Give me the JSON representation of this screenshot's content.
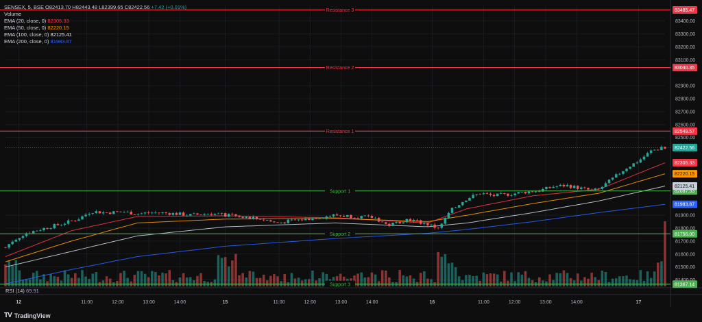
{
  "legend": {
    "symbol": "SENSEX, 5, BSE",
    "open_label": "O",
    "open": "82413.70",
    "high_label": "H",
    "high": "82443.48",
    "low_label": "L",
    "low": "82399.65",
    "close_label": "C",
    "close": "82422.56",
    "change": "+7.42 (+0.01%)",
    "volume_label": "Volume",
    "ema20_label": "EMA (20, close, 0)",
    "ema20": "82305.33",
    "ema50_label": "EMA (50, close, 0)",
    "ema50": "82220.15",
    "ema100_label": "EMA (100, close, 0)",
    "ema100": "82125.41",
    "ema200_label": "EMA (200, close, 0)",
    "ema200": "81983.87"
  },
  "rsi": {
    "label": "RSI (14)",
    "value": "69.91"
  },
  "brand": {
    "icon": "TV",
    "name": "TradingView"
  },
  "colors": {
    "up": "#26a69a",
    "down": "#ef5350",
    "resistance": "#f23645",
    "support": "#4caf50",
    "ema20": "#f23645",
    "ema50": "#ff9800",
    "ema100": "#c8d0d8",
    "ema200": "#2962ff",
    "background": "#0e0e0e"
  },
  "chart_data": {
    "type": "candlestick",
    "ylim": [
      81350,
      83520
    ],
    "y_ticks": [
      83400,
      83300,
      83200,
      83100,
      82900,
      82800,
      82700,
      82600,
      82500,
      81900,
      81800,
      81700,
      81600,
      81500,
      81400
    ],
    "x_ticks": [
      {
        "label": "12",
        "bold": true,
        "t": 0.0
      },
      {
        "label": "11:00",
        "bold": false,
        "t": 0.11
      },
      {
        "label": "12:00",
        "bold": false,
        "t": 0.16
      },
      {
        "label": "13:00",
        "bold": false,
        "t": 0.21
      },
      {
        "label": "14:00",
        "bold": false,
        "t": 0.26
      },
      {
        "label": "15",
        "bold": true,
        "t": 0.333
      },
      {
        "label": "11:00",
        "bold": false,
        "t": 0.42
      },
      {
        "label": "12:00",
        "bold": false,
        "t": 0.47
      },
      {
        "label": "13:00",
        "bold": false,
        "t": 0.52
      },
      {
        "label": "14:00",
        "bold": false,
        "t": 0.57
      },
      {
        "label": "16",
        "bold": true,
        "t": 0.667
      },
      {
        "label": "11:00",
        "bold": false,
        "t": 0.75
      },
      {
        "label": "12:00",
        "bold": false,
        "t": 0.8
      },
      {
        "label": "13:00",
        "bold": false,
        "t": 0.85
      },
      {
        "label": "14:00",
        "bold": false,
        "t": 0.9
      },
      {
        "label": "17",
        "bold": true,
        "t": 1.0
      }
    ],
    "levels": [
      {
        "name": "Resistance 3",
        "value": 83485.47,
        "kind": "resistance",
        "label": "83485.47"
      },
      {
        "name": "Resistance 2",
        "value": 83040.35,
        "kind": "resistance",
        "label": "83040.35"
      },
      {
        "name": "Resistance 1",
        "value": 82549.57,
        "kind": "resistance",
        "label": "82549.57"
      },
      {
        "name": "Support 1",
        "value": 82087.33,
        "kind": "support",
        "label": "82087.33"
      },
      {
        "name": "Support 2",
        "value": 81756.0,
        "kind": "support",
        "label": "81756.00"
      },
      {
        "name": "Support 3",
        "value": 81367.14,
        "kind": "support",
        "label": "81367.14"
      }
    ],
    "last_price": {
      "value": 82422.56,
      "label": "82422.56"
    },
    "ema_tags": [
      {
        "value": 82305.33,
        "label": "82305.33",
        "color": "#f23645"
      },
      {
        "value": 82220.15,
        "label": "82220.15",
        "color": "#ff9800"
      },
      {
        "value": 82125.41,
        "label": "82125.41",
        "color": "#c8d0d8"
      },
      {
        "value": 81983.87,
        "label": "81983.87",
        "color": "#2962ff"
      }
    ],
    "price_path": [
      [
        0.0,
        81650
      ],
      [
        0.01,
        81700
      ],
      [
        0.03,
        81760
      ],
      [
        0.06,
        81800
      ],
      [
        0.09,
        81840
      ],
      [
        0.11,
        81870
      ],
      [
        0.13,
        81930
      ],
      [
        0.15,
        81920
      ],
      [
        0.18,
        81925
      ],
      [
        0.2,
        81910
      ],
      [
        0.22,
        81920
      ],
      [
        0.25,
        81915
      ],
      [
        0.28,
        81900
      ],
      [
        0.31,
        81915
      ],
      [
        0.333,
        81900
      ],
      [
        0.36,
        81890
      ],
      [
        0.39,
        81870
      ],
      [
        0.41,
        81840
      ],
      [
        0.44,
        81860
      ],
      [
        0.47,
        81880
      ],
      [
        0.5,
        81900
      ],
      [
        0.53,
        81890
      ],
      [
        0.56,
        81880
      ],
      [
        0.58,
        81820
      ],
      [
        0.61,
        81870
      ],
      [
        0.64,
        81830
      ],
      [
        0.655,
        81800
      ],
      [
        0.667,
        81880
      ],
      [
        0.68,
        81960
      ],
      [
        0.7,
        82030
      ],
      [
        0.72,
        82070
      ],
      [
        0.74,
        82050
      ],
      [
        0.76,
        82060
      ],
      [
        0.79,
        82080
      ],
      [
        0.81,
        82090
      ],
      [
        0.83,
        82120
      ],
      [
        0.85,
        82130
      ],
      [
        0.87,
        82110
      ],
      [
        0.89,
        82090
      ],
      [
        0.9,
        82100
      ],
      [
        0.92,
        82180
      ],
      [
        0.94,
        82260
      ],
      [
        0.96,
        82320
      ],
      [
        0.98,
        82400
      ],
      [
        1.0,
        82422
      ]
    ],
    "ema_paths": {
      "ema20": [
        [
          0.0,
          81580
        ],
        [
          0.1,
          81780
        ],
        [
          0.2,
          81890
        ],
        [
          0.333,
          81895
        ],
        [
          0.5,
          81880
        ],
        [
          0.64,
          81840
        ],
        [
          0.7,
          81950
        ],
        [
          0.8,
          82050
        ],
        [
          0.9,
          82100
        ],
        [
          1.0,
          82305
        ]
      ],
      "ema50": [
        [
          0.0,
          81540
        ],
        [
          0.1,
          81700
        ],
        [
          0.2,
          81840
        ],
        [
          0.333,
          81870
        ],
        [
          0.5,
          81875
        ],
        [
          0.64,
          81850
        ],
        [
          0.7,
          81900
        ],
        [
          0.8,
          81990
        ],
        [
          0.9,
          82070
        ],
        [
          1.0,
          82220
        ]
      ],
      "ema100": [
        [
          0.0,
          81500
        ],
        [
          0.1,
          81620
        ],
        [
          0.2,
          81740
        ],
        [
          0.333,
          81810
        ],
        [
          0.5,
          81840
        ],
        [
          0.64,
          81810
        ],
        [
          0.7,
          81840
        ],
        [
          0.8,
          81920
        ],
        [
          0.9,
          82010
        ],
        [
          1.0,
          82125
        ]
      ],
      "ema200": [
        [
          0.0,
          81370
        ],
        [
          0.1,
          81480
        ],
        [
          0.2,
          81580
        ],
        [
          0.333,
          81660
        ],
        [
          0.5,
          81720
        ],
        [
          0.64,
          81760
        ],
        [
          0.7,
          81790
        ],
        [
          0.8,
          81850
        ],
        [
          0.9,
          81920
        ],
        [
          1.0,
          81984
        ]
      ]
    }
  }
}
